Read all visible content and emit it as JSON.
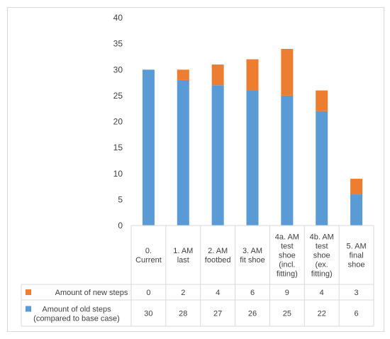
{
  "chart_data": {
    "type": "bar",
    "stacked": true,
    "categories": [
      [
        "0.",
        "Current"
      ],
      [
        "1. AM",
        "last"
      ],
      [
        "2. AM",
        "footbed"
      ],
      [
        "3. AM",
        "fit shoe"
      ],
      [
        "4a. AM",
        "test",
        "shoe",
        "(incl.",
        "fitting)"
      ],
      [
        "4b. AM",
        "test",
        "shoe",
        "(ex.",
        "fitting)"
      ],
      [
        "5. AM",
        "final",
        "shoe"
      ]
    ],
    "series": [
      {
        "name": "Amount of old steps",
        "name_line2": "(compared to base case)",
        "color": "#5b9bd5",
        "values": [
          30,
          28,
          27,
          26,
          25,
          22,
          6
        ]
      },
      {
        "name": "Amount of new steps",
        "name_line2": "",
        "color": "#ed7d31",
        "values": [
          0,
          2,
          4,
          6,
          9,
          4,
          3
        ]
      }
    ],
    "ylim": [
      0,
      40
    ],
    "yticks": [
      0,
      5,
      10,
      15,
      20,
      25,
      30,
      35,
      40
    ],
    "grid": false,
    "legend": "data-table",
    "title": "",
    "xlabel": "",
    "ylabel": ""
  }
}
